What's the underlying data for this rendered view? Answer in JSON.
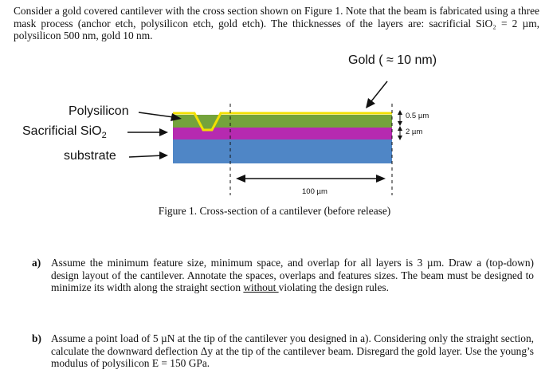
{
  "intro": {
    "text": "Consider a gold covered cantilever with the cross section shown on Figure 1. Note that the beam is fabricated using a three mask process (anchor etch, polysilicon etch, gold etch). The thicknesses of the layers are: sacrificial SiO₂ = 2 µm, polysilicon 500 nm, gold 10 nm."
  },
  "figure": {
    "gold_label": "Gold ( ≈ 10 nm)",
    "polysilicon_label": "Polysilicon",
    "sacrificial_label": "Sacrificial SiO",
    "sacrificial_sub": "2",
    "substrate_label": "substrate",
    "dim_poly": "0.5 µm",
    "dim_sio2": "2 µm",
    "dim_length": "100 µm",
    "caption": "Figure 1. Cross-section of a cantilever (before release)",
    "colors": {
      "gold": "#f2e000",
      "polysilicon": "#74a33c",
      "sio2": "#b62ab0",
      "substrate": "#4f86c6"
    }
  },
  "questions": {
    "a": {
      "label": "a)",
      "text_before": "Assume the minimum feature size, minimum space, and overlap for all layers is 3 µm. Draw a (top-down) design layout of the cantilever. Annotate the spaces, overlaps and features sizes. The beam must be designed to minimize its width along the straight section ",
      "underlined": "without ",
      "text_after": "violating the design rules."
    },
    "b": {
      "label": "b)",
      "text": "Assume a point load of 5 µN at the tip of the cantilever you designed in a). Considering only the straight section, calculate the downward deflection Δy at the tip of the cantilever beam. Disregard the gold layer. Use the young’s modulus of polysilicon E = 150 GPa."
    }
  }
}
